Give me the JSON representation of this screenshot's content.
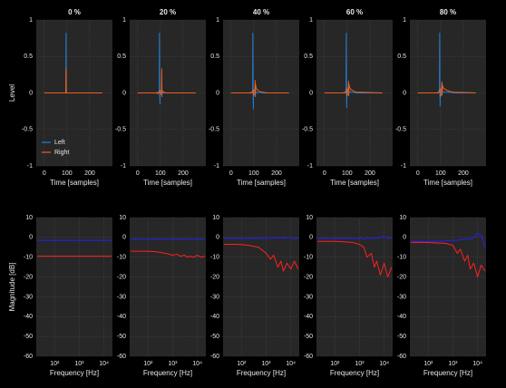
{
  "chart_data": [
    {
      "type": "line",
      "title": "0 %",
      "xlabel": "Time [samples]",
      "ylabel": "Level",
      "legend": "lower left",
      "grid": true,
      "xlim": [
        -35,
        300
      ],
      "ylim": [
        -1,
        1
      ],
      "xticks": [
        0,
        100,
        200
      ],
      "yticks": [
        1,
        0.5,
        0,
        -0.5,
        -1
      ],
      "x": [
        0,
        95,
        96,
        97,
        255
      ],
      "series": [
        {
          "name": "Left",
          "color": "#1f7fd8",
          "values": [
            0,
            0,
            0.82,
            0,
            0
          ]
        },
        {
          "name": "Right",
          "color": "#f0601a",
          "values": [
            0,
            0,
            0.33,
            0,
            0
          ]
        }
      ]
    },
    {
      "type": "line",
      "title": "20 %",
      "xlabel": "Time [samples]",
      "grid": true,
      "xlim": [
        -35,
        300
      ],
      "ylim": [
        -1,
        1
      ],
      "xticks": [
        0,
        100,
        200
      ],
      "yticks": [
        1,
        0.5,
        0,
        -0.5,
        -1
      ],
      "x": [
        0,
        80,
        90,
        95,
        96,
        97,
        98,
        99,
        100,
        103,
        105,
        106,
        107,
        108,
        110,
        115,
        125,
        140,
        160,
        255
      ],
      "series": [
        {
          "color": "#1f7fd8",
          "values": [
            0,
            0,
            0.01,
            0.02,
            0.82,
            0.05,
            -0.15,
            0.03,
            0.01,
            -0.02,
            0.01,
            0,
            0.01,
            0,
            0,
            0,
            0,
            0,
            0,
            0
          ]
        },
        {
          "color": "#f0601a",
          "values": [
            0,
            0,
            -0.01,
            0.02,
            0.03,
            0.02,
            -0.02,
            0.02,
            0.01,
            0.03,
            0.05,
            0.33,
            -0.05,
            0.03,
            0.02,
            0.01,
            0,
            0,
            0,
            0
          ]
        }
      ]
    },
    {
      "type": "line",
      "title": "40 %",
      "xlabel": "Time [samples]",
      "grid": true,
      "xlim": [
        -35,
        300
      ],
      "ylim": [
        -1,
        1
      ],
      "xticks": [
        0,
        100,
        200
      ],
      "yticks": [
        1,
        0.5,
        0,
        -0.5,
        -1
      ],
      "x": [
        0,
        80,
        90,
        95,
        96,
        97,
        98,
        99,
        100,
        103,
        105,
        106,
        107,
        108,
        110,
        115,
        125,
        140,
        160,
        255
      ],
      "series": [
        {
          "color": "#1f7fd8",
          "values": [
            0,
            0,
            0.01,
            0.02,
            0.82,
            0.08,
            -0.22,
            0.05,
            0.02,
            -0.03,
            0.02,
            0.01,
            0.03,
            0,
            0.01,
            0,
            0.01,
            0,
            0,
            0
          ]
        },
        {
          "color": "#f0601a",
          "values": [
            0,
            0,
            0,
            0.02,
            0.04,
            0.03,
            -0.03,
            0.02,
            0.02,
            0.04,
            0.06,
            0.17,
            -0.05,
            0.12,
            0.07,
            0.04,
            0.02,
            0.01,
            0,
            0
          ]
        }
      ]
    },
    {
      "type": "line",
      "title": "60 %",
      "xlabel": "Time [samples]",
      "grid": true,
      "xlim": [
        -35,
        300
      ],
      "ylim": [
        -1,
        1
      ],
      "xticks": [
        0,
        100,
        200
      ],
      "yticks": [
        1,
        0.5,
        0,
        -0.5,
        -1
      ],
      "x": [
        0,
        80,
        90,
        95,
        96,
        97,
        98,
        99,
        100,
        103,
        105,
        106,
        107,
        108,
        110,
        115,
        125,
        140,
        160,
        255
      ],
      "series": [
        {
          "color": "#1f7fd8",
          "values": [
            0,
            0,
            0.01,
            0.03,
            0.82,
            0.1,
            -0.2,
            0.06,
            0.02,
            -0.03,
            0.03,
            0.01,
            0.04,
            0.01,
            0.02,
            0.01,
            0.01,
            0,
            0,
            0
          ]
        },
        {
          "color": "#f0601a",
          "values": [
            0,
            0,
            0,
            0.02,
            0.05,
            0.03,
            -0.04,
            0.03,
            0.02,
            0.05,
            0.07,
            0.16,
            -0.04,
            0.12,
            0.08,
            0.05,
            0.03,
            0.01,
            0.01,
            0
          ]
        }
      ]
    },
    {
      "type": "line",
      "title": "80 %",
      "xlabel": "Time [samples]",
      "grid": true,
      "xlim": [
        -35,
        300
      ],
      "ylim": [
        -1,
        1
      ],
      "xticks": [
        0,
        100,
        200
      ],
      "yticks": [
        1,
        0.5,
        0,
        -0.5,
        -1
      ],
      "x": [
        0,
        80,
        90,
        95,
        96,
        97,
        98,
        99,
        100,
        103,
        105,
        106,
        107,
        108,
        110,
        115,
        125,
        140,
        160,
        255
      ],
      "series": [
        {
          "color": "#1f7fd8",
          "values": [
            0,
            0,
            0.01,
            0.03,
            0.82,
            0.1,
            -0.18,
            0.06,
            0.03,
            -0.04,
            0.03,
            0.02,
            0.05,
            0.02,
            0.02,
            0.01,
            0.01,
            0.01,
            0,
            0
          ]
        },
        {
          "color": "#f0601a",
          "values": [
            0,
            0,
            0,
            0.03,
            0.05,
            0.04,
            -0.05,
            0.03,
            0.03,
            0.05,
            0.08,
            0.15,
            -0.03,
            0.11,
            0.08,
            0.06,
            0.04,
            0.02,
            0.01,
            0
          ]
        }
      ]
    },
    {
      "type": "line",
      "xlabel": "Frequency [Hz]",
      "ylabel": "Magnitude [dB]",
      "grid": true,
      "xscale": "log",
      "xlim": [
        18,
        22050
      ],
      "ylim": [
        -60,
        10
      ],
      "xticks": [
        {
          "value": 100,
          "label": "10²"
        },
        {
          "value": 1000,
          "label": "10³"
        },
        {
          "value": 10000,
          "label": "10⁴"
        }
      ],
      "yticks": [
        10,
        0,
        -10,
        -20,
        -30,
        -40,
        -50,
        -60
      ],
      "x": [
        20,
        50,
        100,
        200,
        500,
        1000,
        1500,
        2000,
        3000,
        4000,
        5000,
        7000,
        10000,
        14000,
        20000
      ],
      "series": [
        {
          "color": "#2020ff",
          "values": [
            -1.5,
            -1.5,
            -1.5,
            -1.5,
            -1.5,
            -1.5,
            -1.5,
            -1.5,
            -1.5,
            -1.5,
            -1.5,
            -1.5,
            -1.5,
            -1.5,
            -1.5
          ]
        },
        {
          "color": "#ff2020",
          "values": [
            -9.5,
            -9.5,
            -9.5,
            -9.5,
            -9.5,
            -9.5,
            -9.5,
            -9.5,
            -9.5,
            -9.5,
            -9.5,
            -9.5,
            -9.5,
            -9.5,
            -9.5
          ]
        }
      ]
    },
    {
      "type": "line",
      "xlabel": "Frequency [Hz]",
      "grid": true,
      "xscale": "log",
      "xlim": [
        18,
        22050
      ],
      "ylim": [
        -60,
        10
      ],
      "xticks": [
        {
          "value": 100,
          "label": "10²"
        },
        {
          "value": 1000,
          "label": "10³"
        },
        {
          "value": 10000,
          "label": "10⁴"
        }
      ],
      "yticks": [
        10,
        0,
        -10,
        -20,
        -30,
        -40,
        -50,
        -60
      ],
      "x": [
        20,
        50,
        100,
        200,
        500,
        1000,
        1500,
        2000,
        3000,
        4000,
        5000,
        7000,
        10000,
        14000,
        20000
      ],
      "series": [
        {
          "color": "#2020ff",
          "values": [
            -1,
            -1,
            -1,
            -1,
            -1,
            -1,
            -1,
            -1,
            -1,
            -1,
            -1,
            -1,
            -1,
            -1,
            -1
          ]
        },
        {
          "color": "#ff2020",
          "values": [
            -7,
            -7,
            -7,
            -7.2,
            -8,
            -9,
            -8.5,
            -9.5,
            -9,
            -10,
            -9.5,
            -10,
            -9,
            -10,
            -9.5
          ]
        }
      ]
    },
    {
      "type": "line",
      "xlabel": "Frequency [Hz]",
      "grid": true,
      "xscale": "log",
      "xlim": [
        18,
        22050
      ],
      "ylim": [
        -60,
        10
      ],
      "xticks": [
        {
          "value": 100,
          "label": "10²"
        },
        {
          "value": 1000,
          "label": "10³"
        },
        {
          "value": 10000,
          "label": "10⁴"
        }
      ],
      "yticks": [
        10,
        0,
        -10,
        -20,
        -30,
        -40,
        -50,
        -60
      ],
      "x": [
        20,
        50,
        100,
        200,
        500,
        1000,
        1500,
        2000,
        3000,
        4000,
        5000,
        7000,
        10000,
        14000,
        20000
      ],
      "series": [
        {
          "color": "#2020ff",
          "values": [
            -0.5,
            -0.5,
            -0.5,
            -0.5,
            -0.5,
            -0.3,
            -0.6,
            -0.2,
            -0.5,
            0,
            -0.4,
            0,
            -0.3,
            -0.5,
            -0.5
          ]
        },
        {
          "color": "#ff2020",
          "values": [
            -3.5,
            -3.5,
            -3.6,
            -4,
            -5,
            -8,
            -11,
            -9,
            -15,
            -12,
            -17,
            -13,
            -16,
            -12,
            -16
          ]
        }
      ]
    },
    {
      "type": "line",
      "xlabel": "Frequency [Hz]",
      "grid": true,
      "xscale": "log",
      "xlim": [
        18,
        22050
      ],
      "ylim": [
        -60,
        10
      ],
      "xticks": [
        {
          "value": 100,
          "label": "10²"
        },
        {
          "value": 1000,
          "label": "10³"
        },
        {
          "value": 10000,
          "label": "10⁴"
        }
      ],
      "yticks": [
        10,
        0,
        -10,
        -20,
        -30,
        -40,
        -50,
        -60
      ],
      "x": [
        20,
        50,
        100,
        200,
        500,
        1000,
        1500,
        2000,
        3000,
        4000,
        5000,
        7000,
        10000,
        14000,
        20000
      ],
      "series": [
        {
          "color": "#2020ff",
          "values": [
            -0.5,
            -0.5,
            -0.5,
            -0.5,
            -0.6,
            -0.5,
            -0.8,
            -0.3,
            -0.6,
            -0.2,
            -0.5,
            0,
            0.5,
            -0.5,
            -0.3
          ]
        },
        {
          "color": "#ff2020",
          "values": [
            -2,
            -2,
            -2,
            -2.2,
            -2.5,
            -3.5,
            -5,
            -10,
            -8,
            -15,
            -12,
            -19,
            -13,
            -20,
            -15
          ]
        }
      ]
    },
    {
      "type": "line",
      "xlabel": "Frequency [Hz]",
      "grid": true,
      "xscale": "log",
      "xlim": [
        18,
        22050
      ],
      "ylim": [
        -60,
        10
      ],
      "xticks": [
        {
          "value": 100,
          "label": "10²"
        },
        {
          "value": 1000,
          "label": "10³"
        },
        {
          "value": 10000,
          "label": "10⁴"
        }
      ],
      "yticks": [
        10,
        0,
        -10,
        -20,
        -30,
        -40,
        -50,
        -60
      ],
      "x": [
        20,
        50,
        100,
        200,
        500,
        1000,
        1500,
        2000,
        3000,
        4000,
        5000,
        7000,
        10000,
        14000,
        20000
      ],
      "series": [
        {
          "color": "#2020ff",
          "values": [
            -2,
            -2,
            -2,
            -2,
            -1.8,
            -1.5,
            -1.5,
            -1,
            -1.2,
            -0.5,
            -1,
            0,
            2,
            1,
            -5
          ]
        },
        {
          "color": "#ff2020",
          "values": [
            -2.5,
            -2.5,
            -2.6,
            -2.8,
            -3,
            -4,
            -8,
            -6,
            -12,
            -9,
            -16,
            -13,
            -20,
            -14,
            -17
          ]
        }
      ]
    }
  ]
}
